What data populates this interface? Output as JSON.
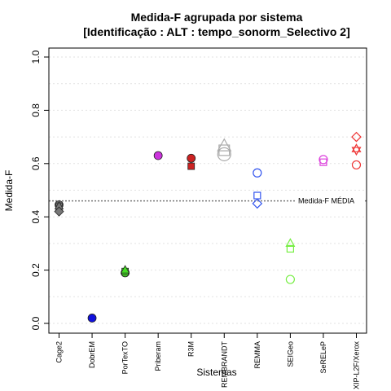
{
  "chart_data": {
    "type": "scatter",
    "title_line1": "Medida-F agrupada por sistema",
    "title_line2": "[Identificação : ALT : tempo_sonorm_Selectivo 2]",
    "xlabel": "Sistemas",
    "ylabel": "Medida-F",
    "ylim": [
      0,
      1
    ],
    "yticks": [
      "0.0",
      "0.2",
      "0.4",
      "0.6",
      "0.8",
      "1.0"
    ],
    "grid": "dotted horizontal",
    "categories": [
      "Cage2",
      "DobrEM",
      "PorTexTO",
      "Priberam",
      "R3M",
      "REMBRANDT",
      "REMMA",
      "SEIGeo",
      "SeRELeP",
      "XIP-L2F/Xerox"
    ],
    "mean_line": {
      "value": 0.46,
      "label": "Medida-F MÉDIA"
    },
    "points": [
      {
        "category": 0,
        "y": 0.445,
        "shape": "circle",
        "filled": true,
        "color": "#777777",
        "big": false
      },
      {
        "category": 0,
        "y": 0.44,
        "shape": "square",
        "filled": true,
        "color": "#777777",
        "big": false
      },
      {
        "category": 0,
        "y": 0.44,
        "shape": "triangle",
        "filled": true,
        "color": "#777777",
        "big": false
      },
      {
        "category": 0,
        "y": 0.42,
        "shape": "diamond",
        "filled": true,
        "color": "#777777",
        "big": false
      },
      {
        "category": 1,
        "y": 0.02,
        "shape": "circle",
        "filled": true,
        "color": "#1010dd",
        "big": false
      },
      {
        "category": 2,
        "y": 0.19,
        "shape": "circle",
        "filled": true,
        "color": "#44dd22",
        "big": false
      },
      {
        "category": 2,
        "y": 0.195,
        "shape": "square",
        "filled": true,
        "color": "#44dd22",
        "big": false
      },
      {
        "category": 2,
        "y": 0.2,
        "shape": "triangle",
        "filled": true,
        "color": "#44dd22",
        "big": false
      },
      {
        "category": 3,
        "y": 0.63,
        "shape": "circle",
        "filled": true,
        "color": "#cc33dd",
        "big": false
      },
      {
        "category": 4,
        "y": 0.62,
        "shape": "circle",
        "filled": true,
        "color": "#cc2222",
        "big": false
      },
      {
        "category": 4,
        "y": 0.59,
        "shape": "square",
        "filled": true,
        "color": "#cc2222",
        "big": false
      },
      {
        "category": 5,
        "y": 0.635,
        "shape": "circle",
        "filled": false,
        "color": "#aaaaaa",
        "big": true
      },
      {
        "category": 5,
        "y": 0.65,
        "shape": "square",
        "filled": false,
        "color": "#aaaaaa",
        "big": true
      },
      {
        "category": 5,
        "y": 0.665,
        "shape": "triangle",
        "filled": false,
        "color": "#aaaaaa",
        "big": true
      },
      {
        "category": 6,
        "y": 0.565,
        "shape": "circle",
        "filled": false,
        "color": "#3355ee",
        "big": false
      },
      {
        "category": 6,
        "y": 0.48,
        "shape": "square",
        "filled": false,
        "color": "#3355ee",
        "big": false
      },
      {
        "category": 6,
        "y": 0.45,
        "shape": "diamond",
        "filled": false,
        "color": "#3355ee",
        "big": false
      },
      {
        "category": 7,
        "y": 0.3,
        "shape": "triangle",
        "filled": false,
        "color": "#77ee44",
        "big": false
      },
      {
        "category": 7,
        "y": 0.28,
        "shape": "square",
        "filled": false,
        "color": "#77ee44",
        "big": false
      },
      {
        "category": 7,
        "y": 0.165,
        "shape": "circle",
        "filled": false,
        "color": "#77ee44",
        "big": false
      },
      {
        "category": 8,
        "y": 0.615,
        "shape": "circle",
        "filled": false,
        "color": "#dd44dd",
        "big": false
      },
      {
        "category": 8,
        "y": 0.605,
        "shape": "square",
        "filled": false,
        "color": "#dd44dd",
        "big": false
      },
      {
        "category": 9,
        "y": 0.7,
        "shape": "diamond",
        "filled": false,
        "color": "#ee3333",
        "big": false
      },
      {
        "category": 9,
        "y": 0.655,
        "shape": "triangle",
        "filled": false,
        "color": "#ee3333",
        "big": false
      },
      {
        "category": 9,
        "y": 0.65,
        "shape": "triangle-down",
        "filled": false,
        "color": "#ee3333",
        "big": false
      },
      {
        "category": 9,
        "y": 0.595,
        "shape": "circle",
        "filled": false,
        "color": "#ee3333",
        "big": false
      }
    ]
  }
}
